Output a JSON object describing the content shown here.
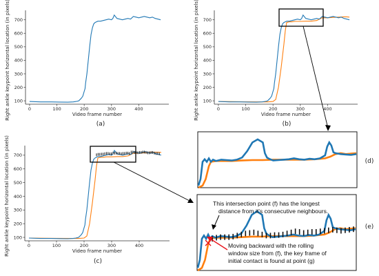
{
  "panels": {
    "a": {
      "label": "(a)"
    },
    "b": {
      "label": "(b)"
    },
    "c": {
      "label": "(c)"
    },
    "d": {
      "label": "(d)"
    },
    "e": {
      "label": "(e)"
    }
  },
  "annotations": {
    "intersection_line1": "This intersection point (f) has the longest",
    "intersection_line2": "distance from it's consecutive neighbours.",
    "backward_line1": "Moving backward with the rolling",
    "backward_line2": "window size from (f), the key frame of",
    "backward_line3": "initial contact is found at point (g)"
  },
  "colors": {
    "blue": "#1f77b4",
    "orange": "#ff7f0e",
    "marker": "#111111",
    "cross": "#e8141c",
    "arrow": "#e8141c"
  },
  "chart_data": [
    {
      "id": "a",
      "type": "line",
      "xlabel": "Video frame number",
      "ylabel": "Right ankle keypoint horizontal location (in pixels)",
      "xlim": [
        -15,
        510
      ],
      "ylim": [
        75,
        770
      ],
      "xticks": [
        0,
        100,
        200,
        300,
        400
      ],
      "yticks": [
        100,
        200,
        300,
        400,
        500,
        600,
        700
      ],
      "series": [
        {
          "color": "blue",
          "x": [
            0,
            40,
            80,
            110,
            140,
            160,
            170,
            180,
            185,
            190,
            195,
            200,
            203,
            205,
            210,
            215,
            220,
            225,
            230,
            235,
            240,
            245,
            250,
            260,
            270,
            280,
            290,
            300,
            305,
            310,
            320,
            330,
            340,
            350,
            360,
            370,
            380,
            390,
            400,
            410,
            420,
            430,
            440,
            450,
            460,
            470,
            480
          ],
          "y": [
            95,
            92,
            92,
            91,
            90,
            92,
            95,
            100,
            110,
            120,
            135,
            170,
            190,
            230,
            300,
            400,
            500,
            590,
            640,
            670,
            680,
            685,
            690,
            690,
            695,
            700,
            705,
            700,
            710,
            735,
            710,
            705,
            700,
            705,
            710,
            705,
            725,
            720,
            715,
            720,
            725,
            720,
            715,
            720,
            710,
            705,
            700
          ]
        }
      ]
    },
    {
      "id": "b",
      "type": "line",
      "xlabel": "Video frame number",
      "ylabel": "Right ankle keypoint horizontal location (in pixels)",
      "xlim": [
        -15,
        510
      ],
      "ylim": [
        75,
        770
      ],
      "xticks": [
        0,
        100,
        200,
        300,
        400
      ],
      "yticks": [
        100,
        200,
        300,
        400,
        500,
        600,
        700
      ],
      "series": [
        {
          "color": "blue",
          "x": [
            0,
            40,
            80,
            110,
            140,
            160,
            170,
            180,
            185,
            190,
            195,
            200,
            203,
            205,
            210,
            215,
            220,
            225,
            230,
            235,
            240,
            245,
            250,
            260,
            270,
            280,
            290,
            300,
            305,
            310,
            320,
            330,
            340,
            350,
            360,
            370,
            380,
            390,
            400,
            410,
            420,
            430,
            440,
            450,
            460,
            470,
            480
          ],
          "y": [
            95,
            92,
            92,
            91,
            90,
            92,
            95,
            100,
            110,
            120,
            135,
            170,
            190,
            230,
            300,
            400,
            500,
            590,
            640,
            670,
            680,
            685,
            690,
            690,
            695,
            700,
            705,
            700,
            710,
            735,
            710,
            705,
            700,
            705,
            710,
            705,
            725,
            720,
            715,
            720,
            725,
            720,
            715,
            720,
            710,
            705,
            700
          ]
        },
        {
          "color": "orange",
          "x": [
            0,
            100,
            180,
            200,
            210,
            220,
            230,
            240,
            245,
            250,
            260,
            270,
            280,
            300,
            320,
            340,
            360,
            370,
            380,
            400,
            420,
            440,
            460,
            470,
            480
          ],
          "y": [
            95,
            93,
            92,
            95,
            110,
            200,
            350,
            520,
            620,
            680,
            685,
            685,
            688,
            688,
            690,
            690,
            695,
            705,
            715,
            715,
            718,
            720,
            722,
            722,
            720
          ]
        }
      ]
    },
    {
      "id": "c",
      "type": "line",
      "xlabel": "Video frame number",
      "ylabel": "Right ankle keypoint horizontal location (in pixels)",
      "xlim": [
        -15,
        510
      ],
      "ylim": [
        75,
        770
      ],
      "xticks": [
        0,
        100,
        200,
        300,
        400
      ],
      "yticks": [
        100,
        200,
        300,
        400,
        500,
        600,
        700
      ],
      "series": [
        {
          "color": "blue",
          "x": [
            0,
            40,
            80,
            110,
            140,
            160,
            170,
            180,
            185,
            190,
            195,
            200,
            203,
            205,
            210,
            215,
            220,
            225,
            230,
            235,
            240,
            245,
            250,
            260,
            270,
            280,
            290,
            300,
            305,
            310,
            320,
            330,
            340,
            350,
            360,
            370,
            380,
            390,
            400,
            410,
            420,
            430,
            440,
            450,
            460,
            470,
            480
          ],
          "y": [
            95,
            92,
            92,
            91,
            90,
            92,
            95,
            100,
            110,
            120,
            135,
            170,
            190,
            230,
            300,
            400,
            500,
            590,
            640,
            670,
            680,
            685,
            690,
            690,
            695,
            700,
            705,
            700,
            710,
            735,
            710,
            705,
            700,
            705,
            710,
            705,
            725,
            720,
            715,
            720,
            725,
            720,
            715,
            720,
            710,
            705,
            700
          ]
        },
        {
          "color": "orange",
          "x": [
            0,
            100,
            180,
            200,
            210,
            220,
            230,
            240,
            245,
            250,
            260,
            270,
            280,
            300,
            320,
            340,
            360,
            370,
            380,
            400,
            420,
            440,
            460,
            470,
            480
          ],
          "y": [
            95,
            93,
            92,
            95,
            110,
            200,
            350,
            520,
            620,
            680,
            685,
            685,
            688,
            688,
            690,
            690,
            695,
            705,
            715,
            715,
            718,
            720,
            722,
            722,
            720
          ]
        }
      ]
    }
  ],
  "zoom_data": {
    "xlim": [
      218,
      370
    ],
    "ylim": [
      640,
      760
    ],
    "blue": {
      "x": [
        218,
        220,
        222,
        224,
        226,
        228,
        230,
        232,
        235,
        240,
        245,
        250,
        255,
        260,
        265,
        270,
        275,
        280,
        282,
        284,
        286,
        288,
        290,
        295,
        300,
        305,
        310,
        315,
        320,
        325,
        330,
        335,
        340,
        342,
        344,
        346,
        348,
        350,
        355,
        360,
        365,
        370
      ],
      "y": [
        645,
        660,
        700,
        706,
        700,
        708,
        700,
        705,
        702,
        705,
        704,
        703,
        705,
        710,
        725,
        745,
        752,
        745,
        720,
        710,
        707,
        705,
        703,
        704,
        705,
        706,
        708,
        706,
        705,
        707,
        706,
        708,
        715,
        735,
        745,
        738,
        722,
        720,
        718,
        717,
        716,
        718
      ]
    },
    "orange": {
      "x": [
        218,
        222,
        225,
        228,
        230,
        235,
        240,
        250,
        260,
        270,
        280,
        290,
        300,
        310,
        320,
        330,
        340,
        345,
        350,
        355,
        360,
        365,
        370
      ],
      "y": [
        640,
        645,
        660,
        690,
        700,
        702,
        702,
        702,
        703,
        704,
        704,
        705,
        705,
        705,
        705,
        706,
        708,
        712,
        718,
        720,
        718,
        719,
        720
      ]
    },
    "markers_x": [
      232,
      236,
      240,
      244,
      248,
      252,
      256,
      260,
      264,
      268,
      272,
      276,
      280,
      284,
      288,
      292,
      296,
      300,
      304,
      308,
      312,
      316,
      320,
      324,
      328,
      332,
      336,
      340,
      344,
      348,
      352,
      356,
      360,
      364,
      368
    ],
    "markers_y": [
      700,
      702,
      703,
      703,
      703,
      704,
      706,
      708,
      710,
      711,
      712,
      710,
      708,
      706,
      706,
      707,
      707,
      708,
      710,
      712,
      714,
      713,
      711,
      712,
      713,
      713,
      714,
      715,
      716,
      717,
      716,
      715,
      716,
      717,
      718
    ],
    "cross": {
      "x": 228,
      "y": 692
    }
  }
}
